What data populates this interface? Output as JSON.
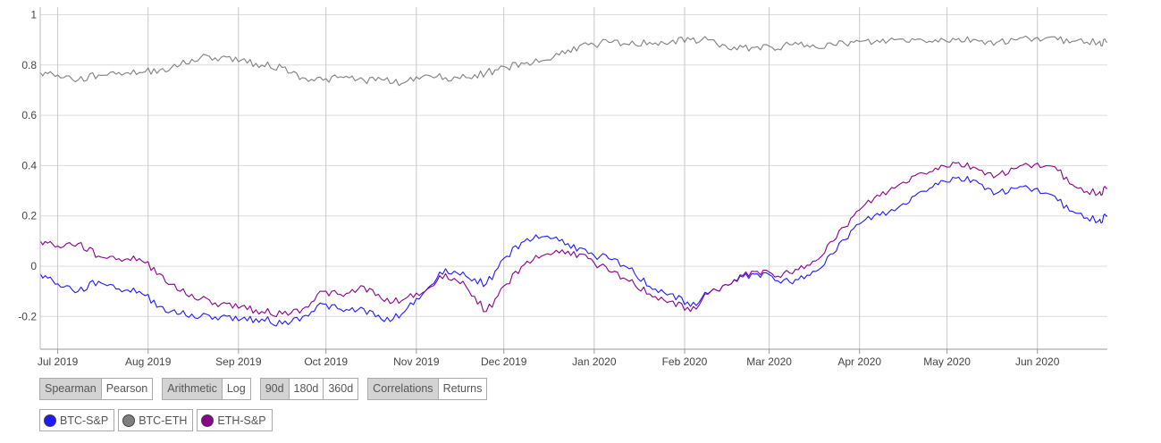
{
  "chart_data": {
    "type": "line",
    "y_ticks": [
      "1",
      "0.8",
      "0.6",
      "0.4",
      "0.2",
      "0",
      "-0.2"
    ],
    "y_tick_values": [
      1,
      0.8,
      0.6,
      0.4,
      0.2,
      0,
      -0.2
    ],
    "ylim": [
      -0.33,
      1.03
    ],
    "x_ticks": [
      "Jul 2019",
      "Aug 2019",
      "Sep 2019",
      "Oct 2019",
      "Nov 2019",
      "Dec 2019",
      "Jan 2020",
      "Feb 2020",
      "Mar 2020",
      "Apr 2020",
      "May 2020",
      "Jun 2020"
    ],
    "x_tick_dates": [
      "2019-07-01",
      "2019-08-01",
      "2019-09-01",
      "2019-10-01",
      "2019-11-01",
      "2019-12-01",
      "2020-01-01",
      "2020-02-01",
      "2020-03-01",
      "2020-04-01",
      "2020-05-01",
      "2020-06-01"
    ],
    "xlim": [
      "2019-06-25",
      "2020-06-25"
    ],
    "grid": true,
    "legend_position": "bottom-left",
    "series": [
      {
        "name": "BTC-S&P",
        "color": "#1f1aff",
        "x": [
          "2019-06-25",
          "2019-07-01",
          "2019-07-08",
          "2019-07-15",
          "2019-07-22",
          "2019-07-29",
          "2019-08-05",
          "2019-08-12",
          "2019-08-19",
          "2019-08-26",
          "2019-09-02",
          "2019-09-09",
          "2019-09-16",
          "2019-09-23",
          "2019-09-30",
          "2019-10-07",
          "2019-10-14",
          "2019-10-21",
          "2019-10-28",
          "2019-11-04",
          "2019-11-11",
          "2019-11-18",
          "2019-11-25",
          "2019-12-02",
          "2019-12-09",
          "2019-12-16",
          "2019-12-23",
          "2019-12-30",
          "2020-01-06",
          "2020-01-13",
          "2020-01-20",
          "2020-01-27",
          "2020-02-03",
          "2020-02-10",
          "2020-02-17",
          "2020-02-24",
          "2020-03-02",
          "2020-03-09",
          "2020-03-16",
          "2020-03-23",
          "2020-03-30",
          "2020-04-06",
          "2020-04-13",
          "2020-04-20",
          "2020-04-27",
          "2020-05-04",
          "2020-05-11",
          "2020-05-18",
          "2020-05-25",
          "2020-06-01",
          "2020-06-08",
          "2020-06-15",
          "2020-06-22",
          "2020-06-25"
        ],
        "values": [
          -0.03,
          -0.07,
          -0.1,
          -0.06,
          -0.09,
          -0.1,
          -0.16,
          -0.19,
          -0.2,
          -0.2,
          -0.21,
          -0.21,
          -0.23,
          -0.2,
          -0.15,
          -0.18,
          -0.17,
          -0.22,
          -0.18,
          -0.1,
          -0.01,
          -0.04,
          -0.07,
          0.04,
          0.11,
          0.12,
          0.09,
          0.05,
          0.03,
          -0.01,
          -0.08,
          -0.11,
          -0.16,
          -0.1,
          -0.07,
          -0.03,
          -0.04,
          -0.07,
          -0.02,
          0.05,
          0.15,
          0.2,
          0.22,
          0.28,
          0.33,
          0.35,
          0.34,
          0.29,
          0.31,
          0.31,
          0.26,
          0.21,
          0.18,
          0.2
        ]
      },
      {
        "name": "BTC-ETH",
        "color": "#7f7f7f",
        "x": [
          "2019-06-25",
          "2019-07-01",
          "2019-07-08",
          "2019-07-15",
          "2019-07-22",
          "2019-07-29",
          "2019-08-05",
          "2019-08-12",
          "2019-08-19",
          "2019-08-26",
          "2019-09-02",
          "2019-09-09",
          "2019-09-16",
          "2019-09-23",
          "2019-09-30",
          "2019-10-07",
          "2019-10-14",
          "2019-10-21",
          "2019-10-28",
          "2019-11-04",
          "2019-11-11",
          "2019-11-18",
          "2019-11-25",
          "2019-12-02",
          "2019-12-09",
          "2019-12-16",
          "2019-12-23",
          "2019-12-30",
          "2020-01-06",
          "2020-01-13",
          "2020-01-20",
          "2020-01-27",
          "2020-02-03",
          "2020-02-10",
          "2020-02-17",
          "2020-02-24",
          "2020-03-02",
          "2020-03-09",
          "2020-03-16",
          "2020-03-23",
          "2020-03-30",
          "2020-04-06",
          "2020-04-13",
          "2020-04-20",
          "2020-04-27",
          "2020-05-04",
          "2020-05-11",
          "2020-05-18",
          "2020-05-25",
          "2020-06-01",
          "2020-06-08",
          "2020-06-15",
          "2020-06-22",
          "2020-06-25"
        ],
        "values": [
          0.77,
          0.76,
          0.74,
          0.76,
          0.77,
          0.77,
          0.78,
          0.8,
          0.83,
          0.83,
          0.82,
          0.8,
          0.79,
          0.75,
          0.74,
          0.75,
          0.74,
          0.74,
          0.73,
          0.76,
          0.75,
          0.75,
          0.77,
          0.79,
          0.81,
          0.82,
          0.86,
          0.88,
          0.89,
          0.88,
          0.89,
          0.89,
          0.9,
          0.9,
          0.86,
          0.87,
          0.87,
          0.88,
          0.88,
          0.88,
          0.89,
          0.89,
          0.9,
          0.9,
          0.9,
          0.9,
          0.9,
          0.89,
          0.9,
          0.91,
          0.9,
          0.9,
          0.89,
          0.89
        ]
      },
      {
        "name": "ETH-S&P",
        "color": "#8b008b",
        "x": [
          "2019-06-25",
          "2019-07-01",
          "2019-07-08",
          "2019-07-15",
          "2019-07-22",
          "2019-07-29",
          "2019-08-05",
          "2019-08-12",
          "2019-08-19",
          "2019-08-26",
          "2019-09-02",
          "2019-09-09",
          "2019-09-16",
          "2019-09-23",
          "2019-09-30",
          "2019-10-07",
          "2019-10-14",
          "2019-10-21",
          "2019-10-28",
          "2019-11-04",
          "2019-11-11",
          "2019-11-18",
          "2019-11-25",
          "2019-12-02",
          "2019-12-09",
          "2019-12-16",
          "2019-12-23",
          "2019-12-30",
          "2020-01-06",
          "2020-01-13",
          "2020-01-20",
          "2020-01-27",
          "2020-02-03",
          "2020-02-10",
          "2020-02-17",
          "2020-02-24",
          "2020-03-02",
          "2020-03-09",
          "2020-03-16",
          "2020-03-23",
          "2020-03-30",
          "2020-04-06",
          "2020-04-13",
          "2020-04-20",
          "2020-04-27",
          "2020-05-04",
          "2020-05-11",
          "2020-05-18",
          "2020-05-25",
          "2020-06-01",
          "2020-06-08",
          "2020-06-15",
          "2020-06-22",
          "2020-06-25"
        ],
        "values": [
          0.1,
          0.08,
          0.09,
          0.04,
          0.03,
          0.03,
          -0.03,
          -0.1,
          -0.13,
          -0.15,
          -0.16,
          -0.18,
          -0.19,
          -0.17,
          -0.1,
          -0.12,
          -0.08,
          -0.14,
          -0.13,
          -0.1,
          -0.03,
          -0.08,
          -0.18,
          -0.07,
          0.02,
          0.05,
          0.06,
          0.03,
          -0.02,
          -0.06,
          -0.11,
          -0.14,
          -0.18,
          -0.1,
          -0.07,
          -0.02,
          -0.03,
          -0.03,
          0.02,
          0.1,
          0.2,
          0.27,
          0.31,
          0.36,
          0.39,
          0.41,
          0.39,
          0.36,
          0.39,
          0.41,
          0.38,
          0.31,
          0.29,
          0.31
        ]
      }
    ]
  },
  "controls": {
    "method": [
      "Spearman",
      "Pearson"
    ],
    "scale": [
      "Arithmetic",
      "Log"
    ],
    "window": [
      "90d",
      "180d",
      "360d"
    ],
    "view": [
      "Correlations",
      "Returns"
    ]
  },
  "legend": [
    {
      "label": "BTC-S&P",
      "color": "#1f1aff"
    },
    {
      "label": "BTC-ETH",
      "color": "#7f7f7f"
    },
    {
      "label": "ETH-S&P",
      "color": "#8b008b"
    }
  ]
}
